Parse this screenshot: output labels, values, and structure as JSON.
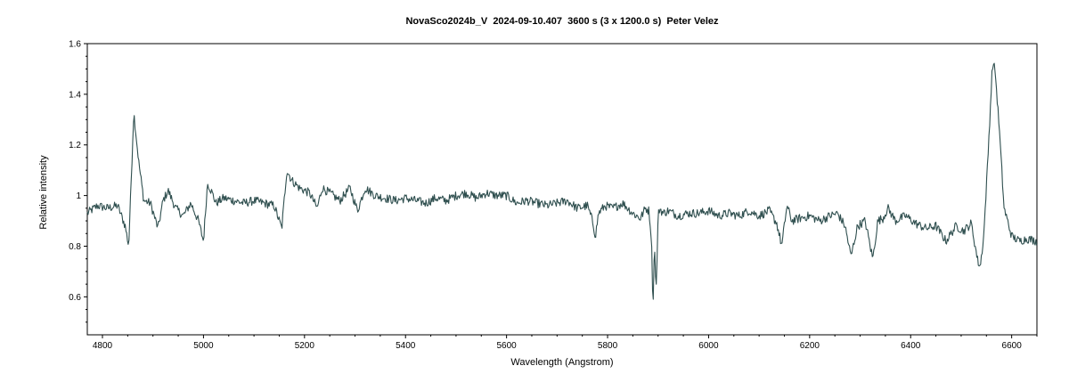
{
  "chart_data": {
    "type": "line",
    "title": "NovaSco2024b_V  2024-09-10.407  3600 s (3 x 1200.0 s)  Peter Velez",
    "xlabel": "Wavelength (Angstrom)",
    "ylabel": "Relative intensity",
    "xlim": [
      4770,
      6650
    ],
    "ylim": [
      0.45,
      1.6
    ],
    "x_ticks": [
      4800,
      5000,
      5200,
      5400,
      5600,
      5800,
      6000,
      6200,
      6400,
      6600
    ],
    "y_ticks": [
      0.6,
      0.8,
      1,
      1.2,
      1.4,
      1.6
    ],
    "x_tick_labels": [
      "4800",
      "5000",
      "5200",
      "5400",
      "5600",
      "5800",
      "6000",
      "6200",
      "6400",
      "6600"
    ],
    "y_tick_labels": [
      "0.6",
      "0.8",
      "1",
      "1.2",
      "1.4",
      "1.6"
    ],
    "grid": false,
    "line_color": "#2f4f4f",
    "series": [
      {
        "x": [
          4770,
          4790,
          4810,
          4830,
          4845,
          4852,
          4862,
          4872,
          4882,
          4895,
          4910,
          4920,
          4930,
          4945,
          4960,
          4975,
          4990,
          5000,
          5008,
          5015,
          5025,
          5040,
          5060,
          5080,
          5100,
          5120,
          5140,
          5155,
          5165,
          5175,
          5190,
          5210,
          5225,
          5235,
          5250,
          5270,
          5290,
          5305,
          5320,
          5340,
          5360,
          5380,
          5400,
          5420,
          5440,
          5460,
          5480,
          5500,
          5520,
          5540,
          5560,
          5580,
          5600,
          5620,
          5640,
          5660,
          5680,
          5700,
          5720,
          5740,
          5760,
          5770,
          5776,
          5782,
          5795,
          5810,
          5830,
          5850,
          5865,
          5875,
          5882,
          5887,
          5890,
          5893,
          5896,
          5900,
          5903,
          5910,
          5920,
          5940,
          5960,
          5980,
          6000,
          6020,
          6040,
          6060,
          6080,
          6100,
          6120,
          6135,
          6145,
          6155,
          6165,
          6180,
          6200,
          6220,
          6240,
          6255,
          6270,
          6282,
          6295,
          6310,
          6325,
          6335,
          6345,
          6355,
          6370,
          6390,
          6410,
          6430,
          6450,
          6470,
          6490,
          6505,
          6520,
          6533,
          6538,
          6545,
          6553,
          6562,
          6567,
          6575,
          6585,
          6600,
          6615,
          6630,
          6650
        ],
        "y": [
          0.93,
          0.96,
          0.95,
          0.96,
          0.88,
          0.8,
          1.33,
          1.13,
          0.98,
          0.97,
          0.87,
          0.98,
          1.02,
          0.95,
          0.92,
          0.97,
          0.9,
          0.82,
          1.05,
          1.02,
          0.97,
          0.99,
          0.98,
          0.97,
          0.98,
          0.97,
          0.96,
          0.87,
          1.1,
          1.06,
          1.03,
          1.01,
          0.95,
          1.03,
          1.01,
          0.98,
          1.03,
          0.94,
          1.03,
          1.0,
          0.99,
          0.98,
          0.99,
          0.98,
          0.97,
          0.99,
          0.98,
          1.0,
          1.01,
          0.99,
          1.01,
          1.0,
          1.0,
          0.97,
          0.98,
          0.97,
          0.96,
          0.97,
          0.98,
          0.95,
          0.96,
          0.9,
          0.84,
          0.93,
          0.96,
          0.95,
          0.97,
          0.93,
          0.91,
          0.95,
          0.94,
          0.83,
          0.55,
          0.83,
          0.6,
          0.92,
          0.95,
          0.93,
          0.94,
          0.92,
          0.93,
          0.93,
          0.94,
          0.92,
          0.93,
          0.92,
          0.94,
          0.92,
          0.94,
          0.89,
          0.8,
          0.96,
          0.9,
          0.91,
          0.92,
          0.9,
          0.92,
          0.93,
          0.88,
          0.76,
          0.88,
          0.9,
          0.75,
          0.9,
          0.91,
          0.95,
          0.9,
          0.92,
          0.89,
          0.87,
          0.88,
          0.82,
          0.88,
          0.86,
          0.89,
          0.74,
          0.72,
          0.85,
          1.15,
          1.52,
          1.5,
          1.28,
          0.95,
          0.84,
          0.82,
          0.83,
          0.82
        ]
      }
    ]
  }
}
